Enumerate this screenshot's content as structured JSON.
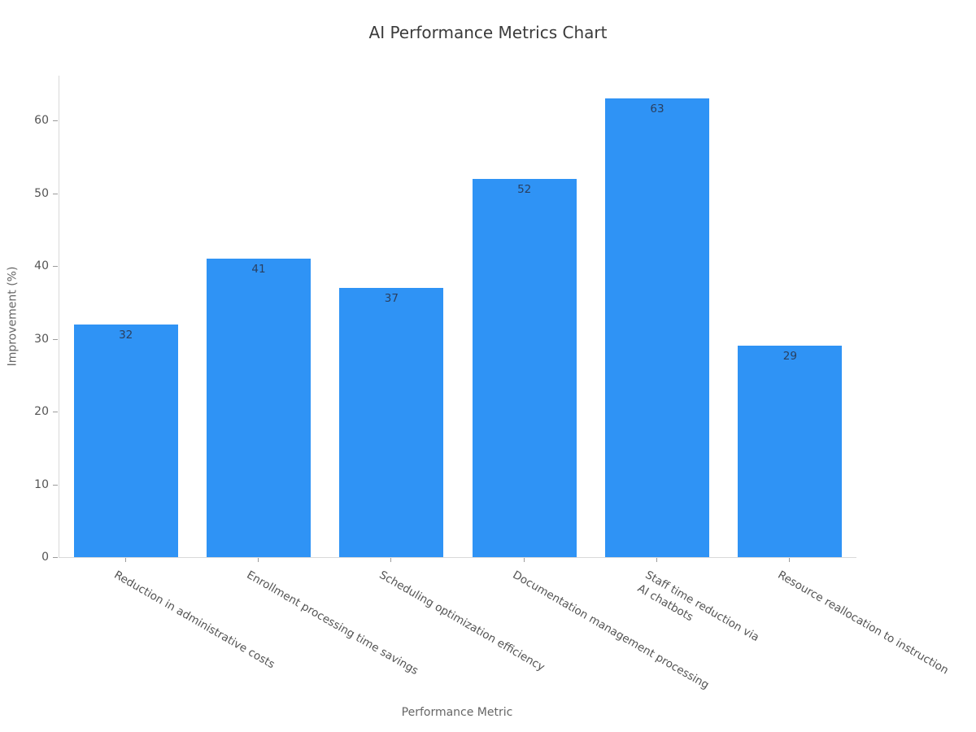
{
  "chart_data": {
    "type": "bar",
    "title": "AI Performance Metrics Chart",
    "xlabel": "Performance Metric",
    "ylabel": "Improvement (%)",
    "categories": [
      "Reduction in administrative costs",
      "Enrollment processing time savings",
      "Scheduling optimization efficiency",
      "Documentation management processing",
      "Staff time reduction via\nAI chatbots",
      "Resource reallocation to instruction"
    ],
    "values": [
      32,
      41,
      37,
      52,
      63,
      29
    ],
    "value_labels": [
      "32",
      "41",
      "37",
      "52",
      "63",
      "29"
    ],
    "ylim": [
      0,
      66.15
    ],
    "yticks": [
      0,
      10,
      20,
      30,
      40,
      50,
      60
    ],
    "tick_angle_deg": 30,
    "grid": false,
    "legend": "none",
    "colors": {
      "bar_fill": "#2F93F5",
      "value_label": "#2a3f5f",
      "tick_label": "#545454",
      "axis_title": "#666666",
      "chart_title": "#3b3b3b",
      "spine": "#d9d9d9",
      "tick_mark": "#9b9b9b",
      "background": "#ffffff"
    }
  }
}
